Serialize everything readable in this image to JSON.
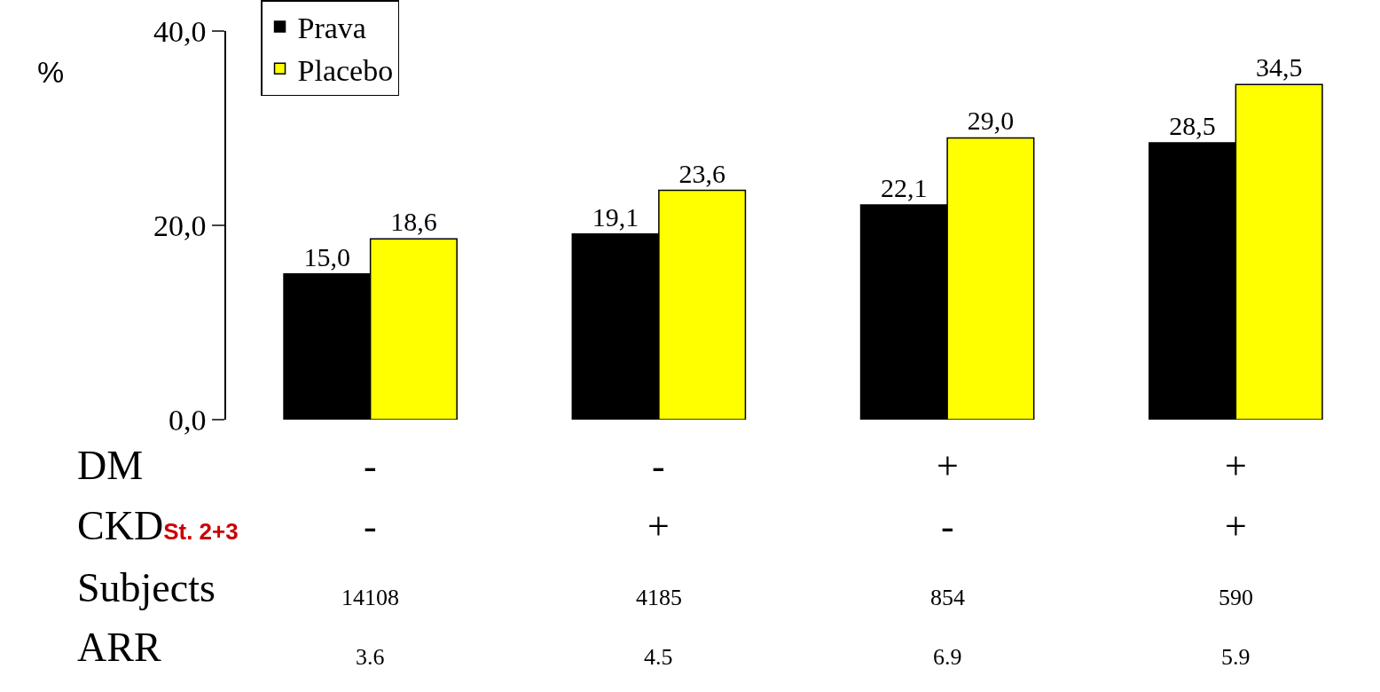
{
  "chart_data": {
    "type": "bar",
    "ylabel": "%",
    "categories": [
      null,
      null,
      null,
      null
    ],
    "series": [
      {
        "name": "Prava",
        "color": "#000000",
        "values": [
          15.0,
          19.1,
          22.1,
          28.5
        ],
        "value_labels": [
          "15,0",
          "19,1",
          "22,1",
          "28,5"
        ]
      },
      {
        "name": "Placebo",
        "color": "#ffff00",
        "values": [
          18.6,
          23.6,
          29.0,
          34.5
        ],
        "value_labels": [
          "18,6",
          "23,6",
          "29,0",
          "34,5"
        ]
      }
    ],
    "ylim": [
      0,
      40
    ],
    "yticks": [
      {
        "value": 0,
        "label": "0,0"
      },
      {
        "value": 20,
        "label": "20,0"
      },
      {
        "value": 40,
        "label": "40,0"
      }
    ],
    "grid": false,
    "legend": "top left",
    "annotations": [
      "DM",
      "-",
      "-",
      "+",
      "+",
      "CKD$_{St. 2+3}$",
      "-",
      "+",
      "-",
      "+",
      "Subjects",
      "14108",
      "4185",
      "854",
      "590",
      "ARR",
      "3.6",
      "4.5",
      "6.9",
      "5.9"
    ]
  }
}
